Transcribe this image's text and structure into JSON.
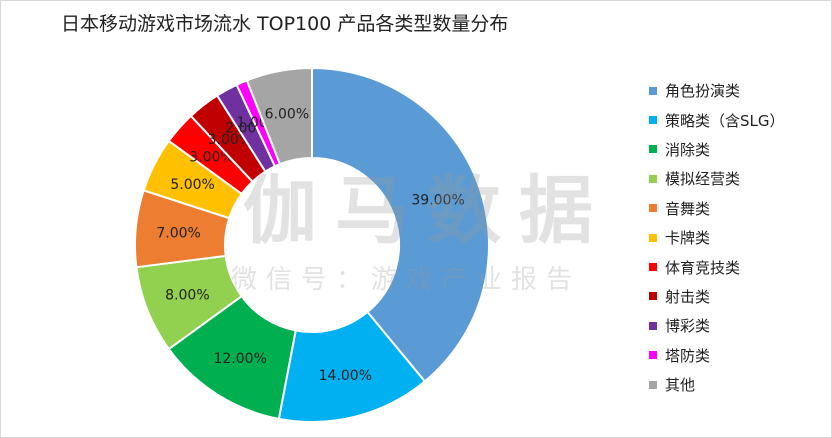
{
  "chart_data": {
    "type": "pie",
    "subtype": "donut",
    "title": "日本移动游戏市场流水 TOP100 产品各类型数量分布",
    "legend_position": "right",
    "slices": [
      {
        "label": "角色扮演类",
        "value": 39,
        "display": "39.00%",
        "color": "#5b9bd5"
      },
      {
        "label": "策略类（含SLG）",
        "value": 14,
        "display": "14.00%",
        "color": "#00b0f0"
      },
      {
        "label": "消除类",
        "value": 12,
        "display": "12.00%",
        "color": "#00b050"
      },
      {
        "label": "模拟经营类",
        "value": 8,
        "display": "8.00%",
        "color": "#92d050"
      },
      {
        "label": "音舞类",
        "value": 7,
        "display": "7.00%",
        "color": "#ed7d31"
      },
      {
        "label": "卡牌类",
        "value": 5,
        "display": "5.00%",
        "color": "#ffc000"
      },
      {
        "label": "体育竞技类",
        "value": 3,
        "display": "3.00%",
        "color": "#ff0000"
      },
      {
        "label": "射击类",
        "value": 3,
        "display": "3.00%",
        "color": "#c00000"
      },
      {
        "label": "博彩类",
        "value": 2,
        "display": "2.00%",
        "color": "#7030a0"
      },
      {
        "label": "塔防类",
        "value": 1,
        "display": "1.00%",
        "color": "#ff00ff"
      },
      {
        "label": "其他",
        "value": 6,
        "display": "6.00%",
        "color": "#a5a5a5"
      }
    ]
  },
  "watermark": {
    "main": "伽马数据",
    "sub": "微信号：游戏产业报告"
  }
}
